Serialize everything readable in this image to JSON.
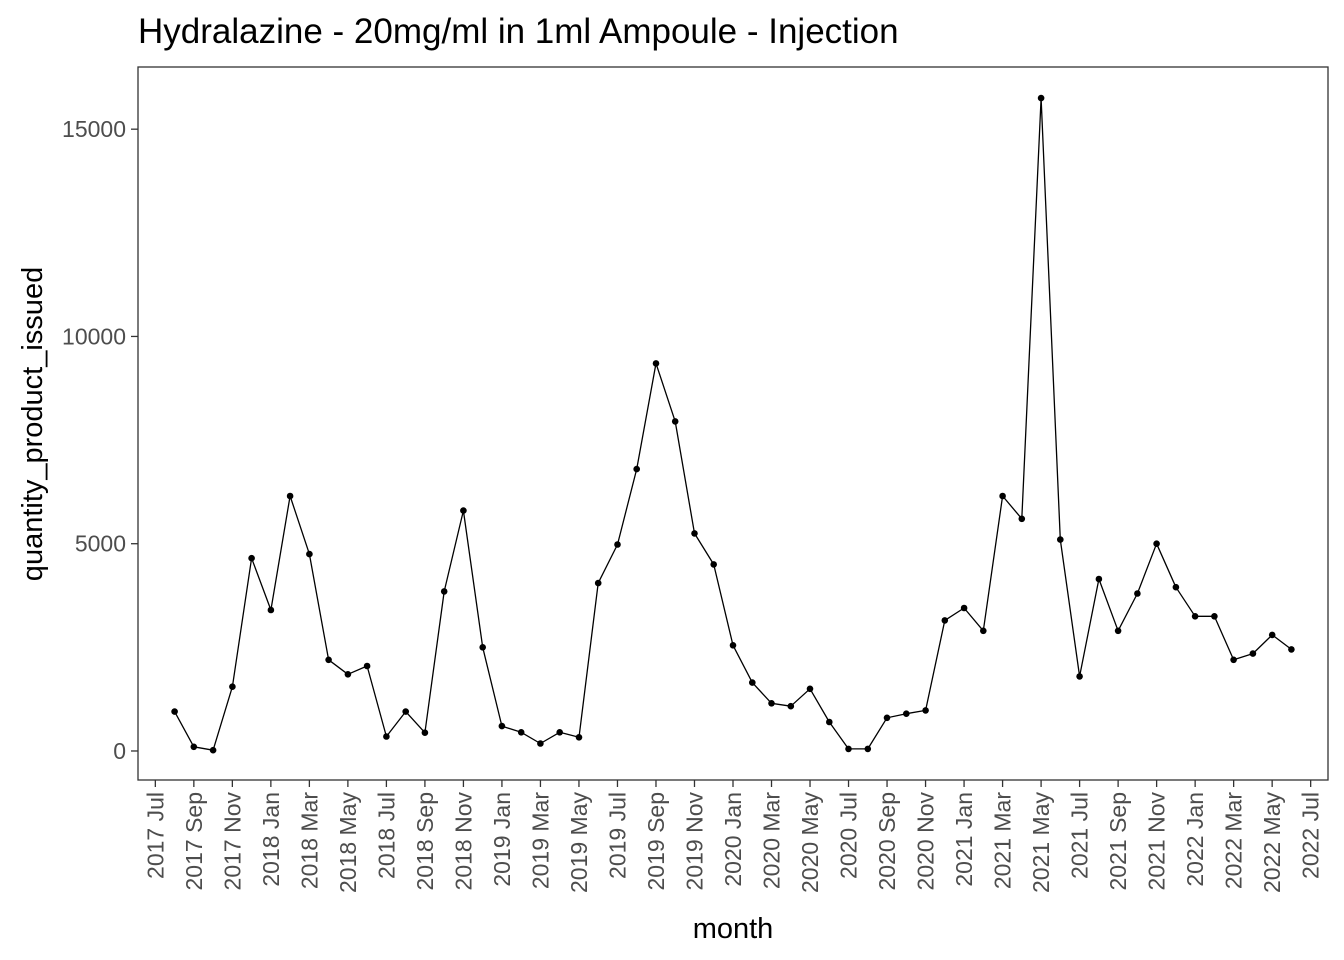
{
  "chart_data": {
    "type": "line",
    "title": "Hydralazine - 20mg/ml in 1ml Ampoule - Injection",
    "xlabel": "month",
    "ylabel": "quantity_product_issued",
    "x": [
      "2017-08",
      "2017-09",
      "2017-10",
      "2017-11",
      "2017-12",
      "2018-01",
      "2018-02",
      "2018-03",
      "2018-04",
      "2018-05",
      "2018-06",
      "2018-07",
      "2018-08",
      "2018-09",
      "2018-10",
      "2018-11",
      "2018-12",
      "2019-01",
      "2019-02",
      "2019-03",
      "2019-04",
      "2019-05",
      "2019-06",
      "2019-07",
      "2019-08",
      "2019-09",
      "2019-10",
      "2019-11",
      "2019-12",
      "2020-01",
      "2020-02",
      "2020-03",
      "2020-04",
      "2020-05",
      "2020-06",
      "2020-07",
      "2020-08",
      "2020-09",
      "2020-10",
      "2020-11",
      "2020-12",
      "2021-01",
      "2021-02",
      "2021-03",
      "2021-04",
      "2021-05",
      "2021-06",
      "2021-07",
      "2021-08",
      "2021-09",
      "2021-10",
      "2021-11",
      "2021-12",
      "2022-01",
      "2022-02",
      "2022-03",
      "2022-04",
      "2022-05",
      "2022-06"
    ],
    "values": [
      950,
      100,
      20,
      1550,
      4650,
      3400,
      6150,
      4750,
      2200,
      1850,
      2050,
      350,
      950,
      440,
      3850,
      5800,
      2500,
      600,
      450,
      180,
      450,
      330,
      4050,
      4980,
      6800,
      9350,
      7950,
      5250,
      4500,
      2550,
      1650,
      1150,
      1080,
      1500,
      700,
      50,
      50,
      800,
      900,
      980,
      3150,
      3450,
      2900,
      6150,
      5600,
      15750,
      5100,
      1800,
      4150,
      2900,
      3800,
      5000,
      3950,
      3250,
      3250,
      2200,
      2350,
      2800,
      2450
    ],
    "x_ticks": [
      "2017 Jul",
      "2017 Sep",
      "2017 Nov",
      "2018 Jan",
      "2018 Mar",
      "2018 May",
      "2018 Jul",
      "2018 Sep",
      "2018 Nov",
      "2019 Jan",
      "2019 Mar",
      "2019 May",
      "2019 Jul",
      "2019 Sep",
      "2019 Nov",
      "2020 Jan",
      "2020 Mar",
      "2020 May",
      "2020 Jul",
      "2020 Sep",
      "2020 Nov",
      "2021 Jan",
      "2021 Mar",
      "2021 May",
      "2021 Jul",
      "2021 Sep",
      "2021 Nov",
      "2022 Jan",
      "2022 Mar",
      "2022 May",
      "2022 Jul"
    ],
    "y_ticks": [
      0,
      5000,
      10000,
      15000
    ],
    "xlim": [
      "2017-07",
      "2022-07"
    ],
    "ylim": [
      -700,
      16500
    ],
    "grid": false,
    "legend": "none",
    "colors": {
      "line": "#000000",
      "point": "#000000",
      "panel_border": "#333333",
      "tick_text": "#4d4d4d"
    }
  }
}
